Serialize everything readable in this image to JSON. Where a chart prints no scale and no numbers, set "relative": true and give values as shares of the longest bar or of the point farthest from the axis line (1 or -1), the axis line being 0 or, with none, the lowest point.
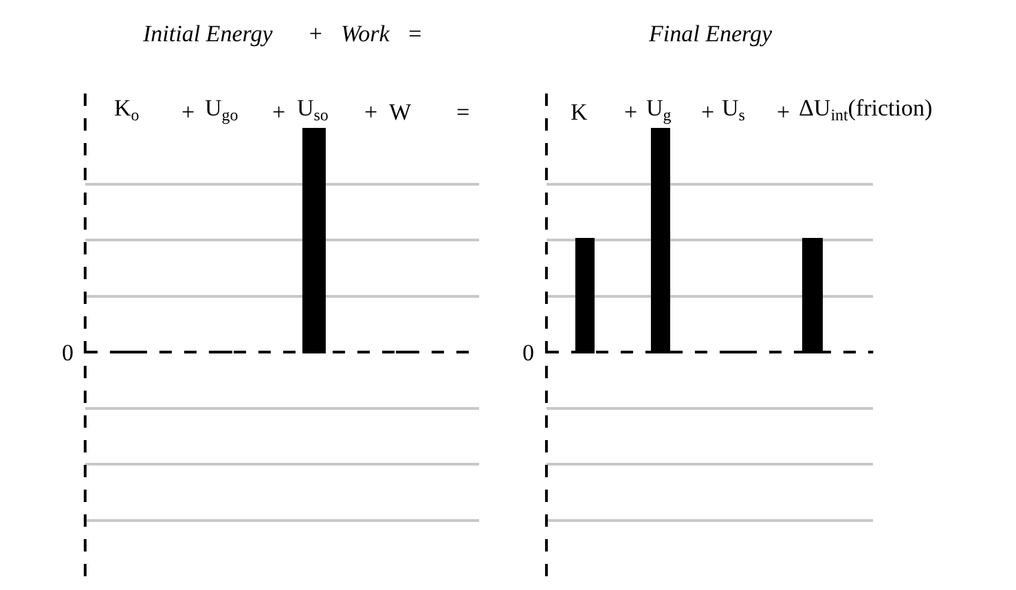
{
  "chart_data": [
    {
      "type": "bar",
      "title": "Initial Energy      +   Work   =",
      "categories": [
        "K$_{o}$",
        "U$_{go}$",
        "U$_{so}$",
        "W"
      ],
      "values": [
        0,
        0,
        1,
        0
      ],
      "color": "#000000",
      "relative": true,
      "grid": "y",
      "legend": false,
      "annotations": [
        "+",
        "+",
        "+",
        "="
      ],
      "ref_lines": [
        {
          "axis": "y",
          "value": 0,
          "label": "0",
          "line_style": "dashed"
        }
      ]
    },
    {
      "type": "bar",
      "title": "Final Energy",
      "categories": [
        "K",
        "U$_{g}$",
        "U$_{s}$",
        "ΔU$_{int}$(friction)"
      ],
      "values": [
        0.5,
        1,
        0,
        0.5
      ],
      "color": "#000000",
      "relative": true,
      "grid": "y",
      "legend": false,
      "annotations": [
        "+",
        "+",
        "+"
      ],
      "ref_lines": [
        {
          "axis": "y",
          "value": 0,
          "label": "0",
          "line_style": "dashed"
        }
      ]
    }
  ]
}
